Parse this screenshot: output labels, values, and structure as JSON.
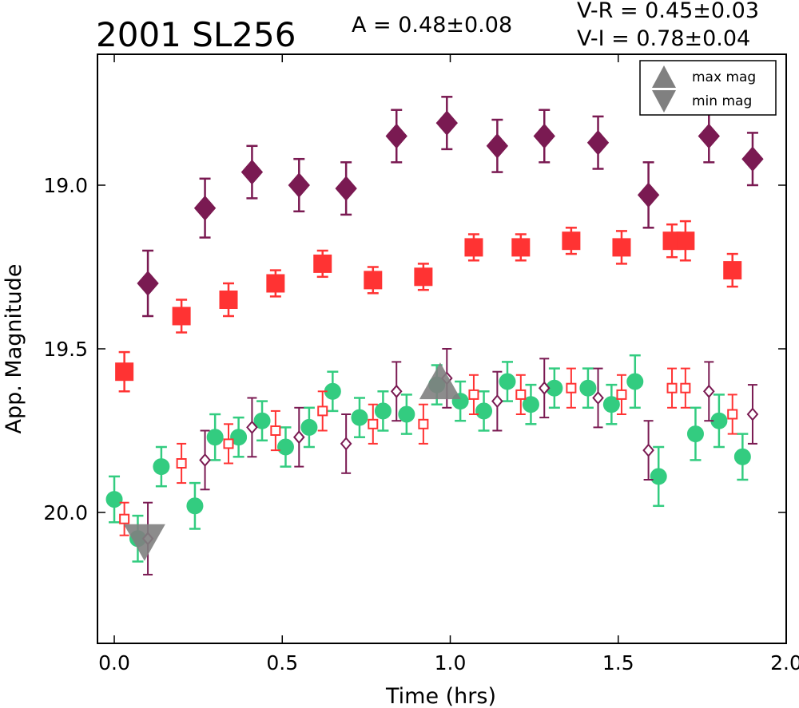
{
  "chart_data": {
    "type": "scatter",
    "title": "2001 SL256",
    "annotations": {
      "amplitude": "A  = 0.48±0.08",
      "v_minus_r": "V-R = 0.45±0.03",
      "v_minus_i": "V-I  = 0.78±0.04"
    },
    "xlabel": "Time (hrs)",
    "ylabel": "App. Magnitude",
    "xlim": [
      -0.05,
      2.0
    ],
    "ylim": [
      20.4,
      18.6
    ],
    "y_inverted": true,
    "xticks": [
      {
        "value": 0.0,
        "label": "0.0"
      },
      {
        "value": 0.5,
        "label": "0.5"
      },
      {
        "value": 1.0,
        "label": "1.0"
      },
      {
        "value": 1.5,
        "label": "1.5"
      },
      {
        "value": 2.0,
        "label": "2.0"
      }
    ],
    "yticks": [
      {
        "value": 19.0,
        "label": "19.0"
      },
      {
        "value": 19.5,
        "label": "19.5"
      },
      {
        "value": 20.0,
        "label": "20.0"
      }
    ],
    "grid": false,
    "legend_position": "top-right",
    "legend": [
      {
        "label": "max mag",
        "marker": "triangle-up",
        "color": "#808080"
      },
      {
        "label": "min mag",
        "marker": "triangle-down",
        "color": "#808080"
      }
    ],
    "series": [
      {
        "marker": "diamond",
        "fill": true,
        "color": "#7a1a52",
        "points": [
          {
            "x": 0.1,
            "y": 19.3,
            "err": 0.1
          },
          {
            "x": 0.27,
            "y": 19.07,
            "err": 0.09
          },
          {
            "x": 0.41,
            "y": 18.96,
            "err": 0.08
          },
          {
            "x": 0.55,
            "y": 19.0,
            "err": 0.08
          },
          {
            "x": 0.69,
            "y": 19.01,
            "err": 0.08
          },
          {
            "x": 0.84,
            "y": 18.85,
            "err": 0.08
          },
          {
            "x": 0.99,
            "y": 18.81,
            "err": 0.08
          },
          {
            "x": 1.14,
            "y": 18.88,
            "err": 0.08
          },
          {
            "x": 1.28,
            "y": 18.85,
            "err": 0.08
          },
          {
            "x": 1.44,
            "y": 18.87,
            "err": 0.08
          },
          {
            "x": 1.59,
            "y": 19.03,
            "err": 0.1
          },
          {
            "x": 1.77,
            "y": 18.85,
            "err": 0.08
          },
          {
            "x": 1.9,
            "y": 18.92,
            "err": 0.08
          }
        ]
      },
      {
        "marker": "square",
        "fill": true,
        "color": "#ff3333",
        "points": [
          {
            "x": 0.03,
            "y": 19.57,
            "err": 0.06
          },
          {
            "x": 0.2,
            "y": 19.4,
            "err": 0.05
          },
          {
            "x": 0.34,
            "y": 19.35,
            "err": 0.05
          },
          {
            "x": 0.48,
            "y": 19.3,
            "err": 0.04
          },
          {
            "x": 0.62,
            "y": 19.24,
            "err": 0.04
          },
          {
            "x": 0.77,
            "y": 19.29,
            "err": 0.04
          },
          {
            "x": 0.92,
            "y": 19.28,
            "err": 0.04
          },
          {
            "x": 1.07,
            "y": 19.19,
            "err": 0.04
          },
          {
            "x": 1.21,
            "y": 19.19,
            "err": 0.04
          },
          {
            "x": 1.36,
            "y": 19.17,
            "err": 0.04
          },
          {
            "x": 1.51,
            "y": 19.19,
            "err": 0.05
          },
          {
            "x": 1.66,
            "y": 19.17,
            "err": 0.05
          },
          {
            "x": 1.7,
            "y": 19.17,
            "err": 0.06
          },
          {
            "x": 1.84,
            "y": 19.26,
            "err": 0.05
          }
        ]
      },
      {
        "marker": "circle",
        "fill": true,
        "color": "#33cc80",
        "points": [
          {
            "x": 0.0,
            "y": 19.96,
            "err": 0.07
          },
          {
            "x": 0.07,
            "y": 20.08,
            "err": 0.07
          },
          {
            "x": 0.14,
            "y": 19.86,
            "err": 0.06
          },
          {
            "x": 0.24,
            "y": 19.98,
            "err": 0.07
          },
          {
            "x": 0.3,
            "y": 19.77,
            "err": 0.07
          },
          {
            "x": 0.37,
            "y": 19.77,
            "err": 0.06
          },
          {
            "x": 0.44,
            "y": 19.72,
            "err": 0.06
          },
          {
            "x": 0.51,
            "y": 19.8,
            "err": 0.06
          },
          {
            "x": 0.58,
            "y": 19.74,
            "err": 0.06
          },
          {
            "x": 0.65,
            "y": 19.63,
            "err": 0.06
          },
          {
            "x": 0.73,
            "y": 19.71,
            "err": 0.06
          },
          {
            "x": 0.8,
            "y": 19.69,
            "err": 0.06
          },
          {
            "x": 0.87,
            "y": 19.7,
            "err": 0.06
          },
          {
            "x": 0.96,
            "y": 19.61,
            "err": 0.06
          },
          {
            "x": 1.03,
            "y": 19.66,
            "err": 0.06
          },
          {
            "x": 1.1,
            "y": 19.69,
            "err": 0.06
          },
          {
            "x": 1.17,
            "y": 19.6,
            "err": 0.06
          },
          {
            "x": 1.24,
            "y": 19.67,
            "err": 0.06
          },
          {
            "x": 1.31,
            "y": 19.62,
            "err": 0.06
          },
          {
            "x": 1.41,
            "y": 19.62,
            "err": 0.06
          },
          {
            "x": 1.48,
            "y": 19.67,
            "err": 0.06
          },
          {
            "x": 1.55,
            "y": 19.6,
            "err": 0.08
          },
          {
            "x": 1.62,
            "y": 19.89,
            "err": 0.09
          },
          {
            "x": 1.73,
            "y": 19.76,
            "err": 0.08
          },
          {
            "x": 1.8,
            "y": 19.72,
            "err": 0.08
          },
          {
            "x": 1.87,
            "y": 19.83,
            "err": 0.07
          }
        ]
      },
      {
        "marker": "square",
        "fill": false,
        "color": "#ff3333",
        "points": [
          {
            "x": 0.03,
            "y": 20.02,
            "err": 0.05
          },
          {
            "x": 0.2,
            "y": 19.85,
            "err": 0.06
          },
          {
            "x": 0.34,
            "y": 19.79,
            "err": 0.06
          },
          {
            "x": 0.48,
            "y": 19.75,
            "err": 0.06
          },
          {
            "x": 0.62,
            "y": 19.69,
            "err": 0.06
          },
          {
            "x": 0.77,
            "y": 19.73,
            "err": 0.06
          },
          {
            "x": 0.92,
            "y": 19.73,
            "err": 0.06
          },
          {
            "x": 1.07,
            "y": 19.64,
            "err": 0.06
          },
          {
            "x": 1.21,
            "y": 19.64,
            "err": 0.06
          },
          {
            "x": 1.36,
            "y": 19.62,
            "err": 0.06
          },
          {
            "x": 1.51,
            "y": 19.64,
            "err": 0.06
          },
          {
            "x": 1.66,
            "y": 19.62,
            "err": 0.06
          },
          {
            "x": 1.7,
            "y": 19.62,
            "err": 0.06
          },
          {
            "x": 1.84,
            "y": 19.7,
            "err": 0.06
          }
        ]
      },
      {
        "marker": "diamond",
        "fill": false,
        "color": "#7a1a52",
        "points": [
          {
            "x": 0.1,
            "y": 20.08,
            "err": 0.11
          },
          {
            "x": 0.27,
            "y": 19.84,
            "err": 0.09
          },
          {
            "x": 0.41,
            "y": 19.74,
            "err": 0.09
          },
          {
            "x": 0.55,
            "y": 19.77,
            "err": 0.09
          },
          {
            "x": 0.69,
            "y": 19.79,
            "err": 0.09
          },
          {
            "x": 0.84,
            "y": 19.63,
            "err": 0.09
          },
          {
            "x": 0.99,
            "y": 19.59,
            "err": 0.09
          },
          {
            "x": 1.14,
            "y": 19.66,
            "err": 0.09
          },
          {
            "x": 1.28,
            "y": 19.62,
            "err": 0.09
          },
          {
            "x": 1.44,
            "y": 19.65,
            "err": 0.09
          },
          {
            "x": 1.59,
            "y": 19.81,
            "err": 0.09
          },
          {
            "x": 1.77,
            "y": 19.63,
            "err": 0.09
          },
          {
            "x": 1.9,
            "y": 19.7,
            "err": 0.09
          }
        ]
      }
    ],
    "extrema_markers": [
      {
        "kind": "max mag",
        "marker": "triangle-up",
        "x": 0.97,
        "y": 19.61,
        "color": "#808080"
      },
      {
        "kind": "min mag",
        "marker": "triangle-down",
        "x": 0.09,
        "y": 20.08,
        "color": "#808080"
      }
    ]
  }
}
